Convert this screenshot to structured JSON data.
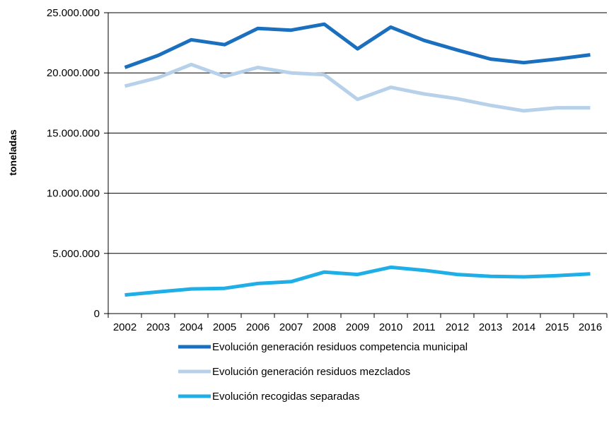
{
  "chart_data": {
    "type": "line",
    "title": "",
    "xlabel": "",
    "ylabel": "toneladas",
    "categories": [
      "2002",
      "2003",
      "2004",
      "2005",
      "2006",
      "2007",
      "2008",
      "2009",
      "2010",
      "2011",
      "2012",
      "2013",
      "2014",
      "2015",
      "2016"
    ],
    "ylim": [
      0,
      25000000
    ],
    "yticks": [
      0,
      5000000,
      10000000,
      15000000,
      20000000,
      25000000
    ],
    "ytick_labels": [
      "0",
      "5.000.000",
      "10.000.000",
      "15.000.000",
      "20.000.000",
      "25.000.000"
    ],
    "grid": "horizontal",
    "legend_position": "bottom",
    "series": [
      {
        "name": "Evolución generación residuos competencia municipal",
        "color": "#1a6fbf",
        "values": [
          20450000,
          21450000,
          22750000,
          22350000,
          23700000,
          23550000,
          24050000,
          22000000,
          23800000,
          22700000,
          21900000,
          21150000,
          20850000,
          21150000,
          21500000
        ]
      },
      {
        "name": "Evolución generación residuos mezclados",
        "color": "#b8d1ea",
        "values": [
          18900000,
          19600000,
          20700000,
          19700000,
          20450000,
          20000000,
          19850000,
          17800000,
          18800000,
          18250000,
          17850000,
          17300000,
          16850000,
          17100000,
          17100000
        ]
      },
      {
        "name": "Evolución recogidas separadas",
        "color": "#20aee6",
        "values": [
          1550000,
          1800000,
          2050000,
          2100000,
          2500000,
          2650000,
          3450000,
          3250000,
          3850000,
          3600000,
          3250000,
          3100000,
          3050000,
          3150000,
          3300000
        ]
      }
    ]
  }
}
